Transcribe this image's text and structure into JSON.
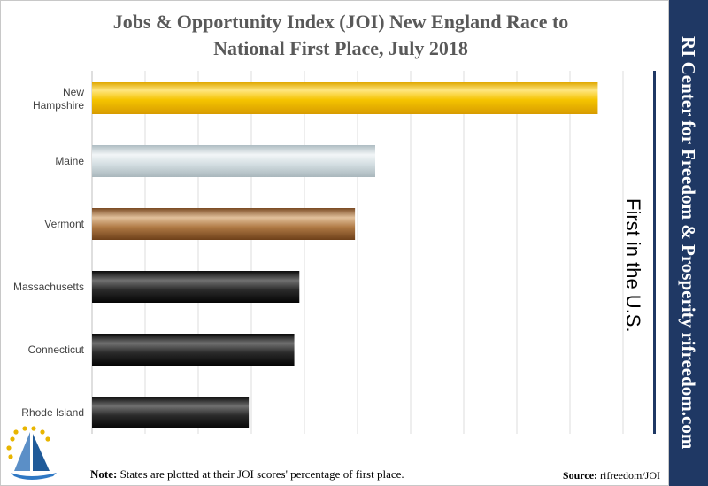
{
  "chart_data": {
    "type": "bar",
    "orientation": "horizontal",
    "title_lines": [
      "Jobs & Opportunity Index (JOI) New England Race to",
      "National First Place, July 2018"
    ],
    "categories": [
      "New Hampshire",
      "Maine",
      "Vermont",
      "Massachusetts",
      "Connecticut",
      "Rhode Island"
    ],
    "values": [
      100,
      56,
      52,
      41,
      40,
      31
    ],
    "unit": "percent of first place",
    "xlim": [
      0,
      105
    ],
    "grid": true,
    "bar_colors": [
      "#f5c400",
      "#c9d4d8",
      "#9b6a3c",
      "#2b2b2b",
      "#2b2b2b",
      "#2b2b2b"
    ],
    "annotation": "First in the U.S."
  },
  "sideband": {
    "text": "RI Center for Freedom & Prosperity     rifreedom.com",
    "color": "#1f3864"
  },
  "note": {
    "prefix": "Note:",
    "text": " States are plotted at their JOI scores' percentage of first place."
  },
  "source": {
    "prefix": "Source:",
    "text": " rifreedom/JOI"
  },
  "logo": {
    "icon": "sailboat-stars-icon"
  }
}
